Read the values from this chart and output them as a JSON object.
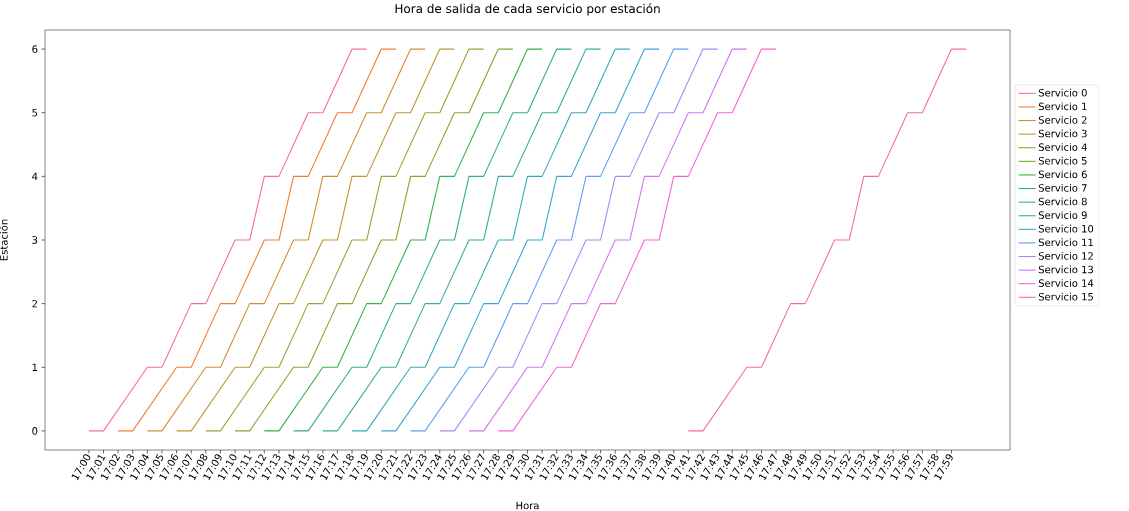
{
  "chart_data": {
    "type": "line",
    "title": "Hora de salida de cada servicio por estación",
    "xlabel": "Hora",
    "ylabel": "Estación",
    "xlim": [
      16.95,
      18.05
    ],
    "ylim": [
      -0.3,
      6.3
    ],
    "yticks": [
      0,
      1,
      2,
      3,
      4,
      5,
      6
    ],
    "legend": "right",
    "grid": false,
    "xticks": [
      {
        "value": 17,
        "label": "17:00"
      },
      {
        "value": 17.0167,
        "label": "17:01"
      },
      {
        "value": 17.0333,
        "label": "17:02"
      },
      {
        "value": 17.05,
        "label": "17:03"
      },
      {
        "value": 17.0667,
        "label": "17:04"
      },
      {
        "value": 17.0833,
        "label": "17:05"
      },
      {
        "value": 17.1,
        "label": "17:06"
      },
      {
        "value": 17.1167,
        "label": "17:07"
      },
      {
        "value": 17.1333,
        "label": "17:08"
      },
      {
        "value": 17.15,
        "label": "17:09"
      },
      {
        "value": 17.1667,
        "label": "17:10"
      },
      {
        "value": 17.1833,
        "label": "17:11"
      },
      {
        "value": 17.2,
        "label": "17:12"
      },
      {
        "value": 17.2167,
        "label": "17:13"
      },
      {
        "value": 17.2333,
        "label": "17:14"
      },
      {
        "value": 17.25,
        "label": "17:15"
      },
      {
        "value": 17.2667,
        "label": "17:16"
      },
      {
        "value": 17.2833,
        "label": "17:17"
      },
      {
        "value": 17.3,
        "label": "17:18"
      },
      {
        "value": 17.3167,
        "label": "17:19"
      },
      {
        "value": 17.3333,
        "label": "17:20"
      },
      {
        "value": 17.35,
        "label": "17:21"
      },
      {
        "value": 17.3667,
        "label": "17:22"
      },
      {
        "value": 17.3833,
        "label": "17:23"
      },
      {
        "value": 17.4,
        "label": "17:24"
      },
      {
        "value": 17.4167,
        "label": "17:25"
      },
      {
        "value": 17.4333,
        "label": "17:26"
      },
      {
        "value": 17.45,
        "label": "17:27"
      },
      {
        "value": 17.4667,
        "label": "17:28"
      },
      {
        "value": 17.4833,
        "label": "17:29"
      },
      {
        "value": 17.5,
        "label": "17:30"
      },
      {
        "value": 17.5167,
        "label": "17:31"
      },
      {
        "value": 17.5333,
        "label": "17:32"
      },
      {
        "value": 17.55,
        "label": "17:33"
      },
      {
        "value": 17.5667,
        "label": "17:34"
      },
      {
        "value": 17.5833,
        "label": "17:35"
      },
      {
        "value": 17.6,
        "label": "17:36"
      },
      {
        "value": 17.6167,
        "label": "17:37"
      },
      {
        "value": 17.6333,
        "label": "17:38"
      },
      {
        "value": 17.65,
        "label": "17:39"
      },
      {
        "value": 17.6667,
        "label": "17:40"
      },
      {
        "value": 17.6833,
        "label": "17:41"
      },
      {
        "value": 17.7,
        "label": "17:42"
      },
      {
        "value": 17.7167,
        "label": "17:43"
      },
      {
        "value": 17.7333,
        "label": "17:44"
      },
      {
        "value": 17.75,
        "label": "17:45"
      },
      {
        "value": 17.7667,
        "label": "17:46"
      },
      {
        "value": 17.7833,
        "label": "17:47"
      },
      {
        "value": 17.8,
        "label": "17:48"
      },
      {
        "value": 17.8167,
        "label": "17:49"
      },
      {
        "value": 17.8333,
        "label": "17:50"
      },
      {
        "value": 17.85,
        "label": "17:51"
      },
      {
        "value": 17.8667,
        "label": "17:52"
      },
      {
        "value": 17.8833,
        "label": "17:53"
      },
      {
        "value": 17.9,
        "label": "17:54"
      },
      {
        "value": 17.9167,
        "label": "17:55"
      },
      {
        "value": 17.9333,
        "label": "17:56"
      },
      {
        "value": 17.95,
        "label": "17:57"
      },
      {
        "value": 17.9667,
        "label": "17:58"
      },
      {
        "value": 17.9833,
        "label": "17:59"
      }
    ],
    "series": [
      {
        "name": "Servicio 0",
        "color": "#f77189",
        "x": [
          17,
          17.0167,
          17.0667,
          17.0833,
          17.1167,
          17.1333,
          17.1667,
          17.1833,
          17.2,
          17.2167,
          17.25,
          17.2667,
          17.3,
          17.3167
        ],
        "values": [
          0,
          0,
          1,
          1,
          2,
          2,
          3,
          3,
          4,
          4,
          5,
          5,
          6,
          6
        ]
      },
      {
        "name": "Servicio 1",
        "color": "#f67b34",
        "x": [
          17.0333,
          17.05,
          17.1,
          17.1167,
          17.15,
          17.1667,
          17.2,
          17.2167,
          17.2333,
          17.25,
          17.2833,
          17.3,
          17.3333,
          17.35
        ],
        "values": [
          0,
          0,
          1,
          1,
          2,
          2,
          3,
          3,
          4,
          4,
          5,
          5,
          6,
          6
        ]
      },
      {
        "name": "Servicio 2",
        "color": "#d48e32",
        "x": [
          17.0667,
          17.0833,
          17.1333,
          17.15,
          17.1833,
          17.2,
          17.2333,
          17.25,
          17.2667,
          17.2833,
          17.3167,
          17.3333,
          17.3667,
          17.3833
        ],
        "values": [
          0,
          0,
          1,
          1,
          2,
          2,
          3,
          3,
          4,
          4,
          5,
          5,
          6,
          6
        ]
      },
      {
        "name": "Servicio 3",
        "color": "#bb9832",
        "x": [
          17.1,
          17.1167,
          17.1667,
          17.1833,
          17.2167,
          17.2333,
          17.2667,
          17.2833,
          17.3,
          17.3167,
          17.35,
          17.3667,
          17.4,
          17.4167
        ],
        "values": [
          0,
          0,
          1,
          1,
          2,
          2,
          3,
          3,
          4,
          4,
          5,
          5,
          6,
          6
        ]
      },
      {
        "name": "Servicio 4",
        "color": "#a3a031",
        "x": [
          17.1333,
          17.15,
          17.2,
          17.2167,
          17.25,
          17.2667,
          17.3,
          17.3167,
          17.3333,
          17.35,
          17.3833,
          17.4,
          17.4333,
          17.45
        ],
        "values": [
          0,
          0,
          1,
          1,
          2,
          2,
          3,
          3,
          4,
          4,
          5,
          5,
          6,
          6
        ]
      },
      {
        "name": "Servicio 5",
        "color": "#7fa931",
        "x": [
          17.1667,
          17.1833,
          17.2333,
          17.25,
          17.2833,
          17.3,
          17.3333,
          17.35,
          17.3667,
          17.3833,
          17.4167,
          17.4333,
          17.4667,
          17.4833
        ],
        "values": [
          0,
          0,
          1,
          1,
          2,
          2,
          3,
          3,
          4,
          4,
          5,
          5,
          6,
          6
        ]
      },
      {
        "name": "Servicio 6",
        "color": "#32b34c",
        "x": [
          17.2,
          17.2167,
          17.2667,
          17.2833,
          17.3167,
          17.3333,
          17.3667,
          17.3833,
          17.4,
          17.4167,
          17.45,
          17.4667,
          17.5,
          17.5167
        ],
        "values": [
          0,
          0,
          1,
          1,
          2,
          2,
          3,
          3,
          4,
          4,
          5,
          5,
          6,
          6
        ]
      },
      {
        "name": "Servicio 7",
        "color": "#34af85",
        "x": [
          17.2333,
          17.25,
          17.3,
          17.3167,
          17.35,
          17.3667,
          17.4,
          17.4167,
          17.4333,
          17.45,
          17.4833,
          17.5,
          17.5333,
          17.55
        ],
        "values": [
          0,
          0,
          1,
          1,
          2,
          2,
          3,
          3,
          4,
          4,
          5,
          5,
          6,
          6
        ]
      },
      {
        "name": "Servicio 8",
        "color": "#36ada0",
        "x": [
          17.2667,
          17.2833,
          17.3333,
          17.35,
          17.3833,
          17.4,
          17.4333,
          17.45,
          17.4667,
          17.4833,
          17.5167,
          17.5333,
          17.5667,
          17.5833
        ],
        "values": [
          0,
          0,
          1,
          1,
          2,
          2,
          3,
          3,
          4,
          4,
          5,
          5,
          6,
          6
        ]
      },
      {
        "name": "Servicio 9",
        "color": "#37abb6",
        "x": [
          17.3,
          17.3167,
          17.3667,
          17.3833,
          17.4167,
          17.4333,
          17.4667,
          17.4833,
          17.5,
          17.5167,
          17.55,
          17.5667,
          17.6,
          17.6167
        ],
        "values": [
          0,
          0,
          1,
          1,
          2,
          2,
          3,
          3,
          4,
          4,
          5,
          5,
          6,
          6
        ]
      },
      {
        "name": "Servicio 10",
        "color": "#39a7d0",
        "x": [
          17.3333,
          17.35,
          17.4,
          17.4167,
          17.45,
          17.4667,
          17.5,
          17.5167,
          17.5333,
          17.55,
          17.5833,
          17.6,
          17.6333,
          17.65
        ],
        "values": [
          0,
          0,
          1,
          1,
          2,
          2,
          3,
          3,
          4,
          4,
          5,
          5,
          6,
          6
        ]
      },
      {
        "name": "Servicio 11",
        "color": "#5c9ff4",
        "x": [
          17.3667,
          17.3833,
          17.4333,
          17.45,
          17.4833,
          17.5,
          17.5333,
          17.55,
          17.5667,
          17.5833,
          17.6167,
          17.6333,
          17.6667,
          17.6833
        ],
        "values": [
          0,
          0,
          1,
          1,
          2,
          2,
          3,
          3,
          4,
          4,
          5,
          5,
          6,
          6
        ]
      },
      {
        "name": "Servicio 12",
        "color": "#a48cf4",
        "x": [
          17.4,
          17.4167,
          17.4667,
          17.4833,
          17.5167,
          17.5333,
          17.5667,
          17.5833,
          17.6,
          17.6167,
          17.65,
          17.6667,
          17.7,
          17.7167
        ],
        "values": [
          0,
          0,
          1,
          1,
          2,
          2,
          3,
          3,
          4,
          4,
          5,
          5,
          6,
          6
        ]
      },
      {
        "name": "Servicio 13",
        "color": "#d575f4",
        "x": [
          17.4333,
          17.45,
          17.5,
          17.5167,
          17.55,
          17.5667,
          17.6,
          17.6167,
          17.6333,
          17.65,
          17.6833,
          17.7,
          17.7333,
          17.75
        ],
        "values": [
          0,
          0,
          1,
          1,
          2,
          2,
          3,
          3,
          4,
          4,
          5,
          5,
          6,
          6
        ]
      },
      {
        "name": "Servicio 14",
        "color": "#f565d4",
        "x": [
          17.4667,
          17.4833,
          17.5333,
          17.55,
          17.5833,
          17.6,
          17.6333,
          17.65,
          17.6667,
          17.6833,
          17.7167,
          17.7333,
          17.7667,
          17.7833
        ],
        "values": [
          0,
          0,
          1,
          1,
          2,
          2,
          3,
          3,
          4,
          4,
          5,
          5,
          6,
          6
        ]
      },
      {
        "name": "Servicio 15",
        "color": "#f66bad",
        "x": [
          17.6833,
          17.7,
          17.75,
          17.7667,
          17.8,
          17.8167,
          17.85,
          17.8667,
          17.8833,
          17.9,
          17.9333,
          17.95,
          17.9833,
          18
        ],
        "values": [
          0,
          0,
          1,
          1,
          2,
          2,
          3,
          3,
          4,
          4,
          5,
          5,
          6,
          6
        ]
      }
    ]
  }
}
